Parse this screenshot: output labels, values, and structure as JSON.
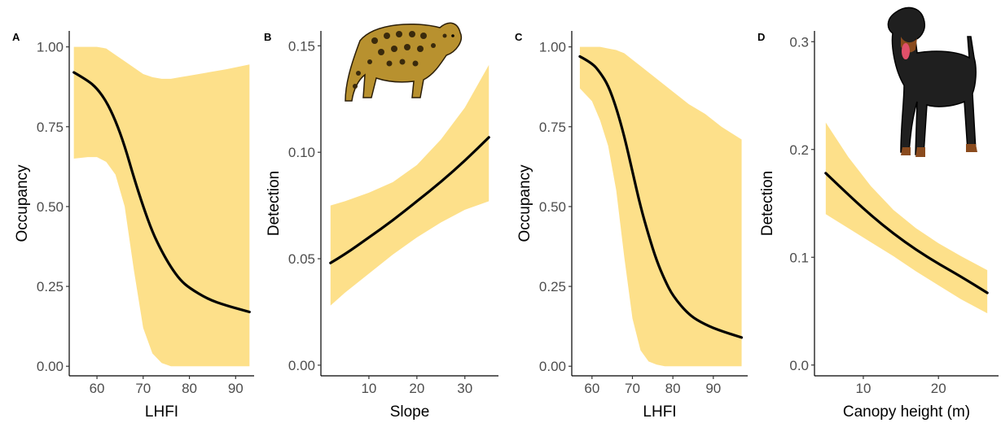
{
  "colors": {
    "ribbon": "#fde08a",
    "line": "#000000",
    "tick_text": "#4d4d4d"
  },
  "illustrations": [
    "ocelot-illustration",
    "rottweiler-illustration"
  ],
  "chart_data": [
    {
      "panel": "A",
      "type": "line",
      "xlabel": "LHFI",
      "ylabel": "Occupancy",
      "xlim": [
        54,
        94
      ],
      "ylim": [
        -0.03,
        1.05
      ],
      "xticks": [
        60,
        70,
        80,
        90
      ],
      "xtick_labels": [
        "60",
        "70",
        "80",
        "90"
      ],
      "yticks": [
        0,
        0.25,
        0.5,
        0.75,
        1.0
      ],
      "ytick_labels": [
        "0.00",
        "0.25",
        "0.50",
        "0.75",
        "1.00"
      ],
      "series": [
        {
          "x": [
            55,
            58,
            60,
            62,
            64,
            66,
            68,
            70,
            72,
            74,
            76,
            78,
            80,
            84,
            88,
            93
          ],
          "y": [
            0.92,
            0.895,
            0.87,
            0.83,
            0.77,
            0.69,
            0.59,
            0.5,
            0.42,
            0.36,
            0.31,
            0.27,
            0.245,
            0.21,
            0.19,
            0.17
          ],
          "lower": [
            0.65,
            0.655,
            0.655,
            0.64,
            0.6,
            0.5,
            0.3,
            0.12,
            0.04,
            0.01,
            0.0,
            0.0,
            0.0,
            0.0,
            0.0,
            0.0
          ],
          "upper": [
            1.0,
            1.0,
            1.0,
            0.995,
            0.975,
            0.955,
            0.935,
            0.915,
            0.905,
            0.9,
            0.9,
            0.905,
            0.91,
            0.92,
            0.93,
            0.945
          ]
        }
      ]
    },
    {
      "panel": "B",
      "type": "line",
      "xlabel": "Slope",
      "ylabel": "Detection",
      "xlim": [
        0,
        37
      ],
      "ylim": [
        -0.005,
        0.157
      ],
      "xticks": [
        10,
        20,
        30
      ],
      "xtick_labels": [
        "10",
        "20",
        "30"
      ],
      "yticks": [
        0,
        0.05,
        0.1,
        0.15
      ],
      "ytick_labels": [
        "0.00",
        "0.05",
        "0.10",
        "0.15"
      ],
      "series": [
        {
          "x": [
            2,
            5,
            10,
            15,
            20,
            25,
            30,
            35
          ],
          "y": [
            0.048,
            0.052,
            0.06,
            0.068,
            0.077,
            0.086,
            0.096,
            0.107
          ],
          "lower": [
            0.028,
            0.034,
            0.043,
            0.052,
            0.06,
            0.067,
            0.073,
            0.077
          ],
          "upper": [
            0.075,
            0.077,
            0.081,
            0.086,
            0.094,
            0.106,
            0.121,
            0.141
          ]
        }
      ]
    },
    {
      "panel": "C",
      "type": "line",
      "xlabel": "LHFI",
      "ylabel": "Occupancy",
      "xlim": [
        55,
        98.5
      ],
      "ylim": [
        -0.03,
        1.05
      ],
      "xticks": [
        60,
        70,
        80,
        90
      ],
      "xtick_labels": [
        "60",
        "70",
        "80",
        "90"
      ],
      "yticks": [
        0,
        0.25,
        0.5,
        0.75,
        1.0
      ],
      "ytick_labels": [
        "0.00",
        "0.25",
        "0.50",
        "0.75",
        "1.00"
      ],
      "series": [
        {
          "x": [
            57,
            60,
            62,
            64,
            66,
            68,
            70,
            72,
            74,
            76,
            78,
            80,
            84,
            88,
            92,
            97
          ],
          "y": [
            0.97,
            0.95,
            0.92,
            0.88,
            0.81,
            0.72,
            0.61,
            0.5,
            0.41,
            0.33,
            0.27,
            0.22,
            0.16,
            0.13,
            0.11,
            0.09
          ],
          "lower": [
            0.87,
            0.83,
            0.77,
            0.69,
            0.55,
            0.34,
            0.15,
            0.05,
            0.015,
            0.005,
            0.0,
            0.0,
            0.0,
            0.0,
            0.0,
            0.0
          ],
          "upper": [
            1.0,
            1.0,
            1.0,
            0.995,
            0.99,
            0.98,
            0.96,
            0.94,
            0.92,
            0.9,
            0.88,
            0.86,
            0.82,
            0.79,
            0.75,
            0.71
          ]
        }
      ]
    },
    {
      "panel": "D",
      "type": "line",
      "xlabel": "Canopy height (m)",
      "ylabel": "Detection",
      "xlim": [
        3.5,
        28
      ],
      "ylim": [
        -0.01,
        0.31
      ],
      "xticks": [
        10,
        20
      ],
      "xtick_labels": [
        "10",
        "20"
      ],
      "yticks": [
        0,
        0.1,
        0.2,
        0.3
      ],
      "ytick_labels": [
        "0.0",
        "0.1",
        "0.2",
        "0.3"
      ],
      "series": [
        {
          "x": [
            5,
            8,
            11,
            14,
            17,
            20,
            23,
            26.5
          ],
          "y": [
            0.178,
            0.158,
            0.139,
            0.122,
            0.107,
            0.094,
            0.082,
            0.067
          ],
          "lower": [
            0.14,
            0.127,
            0.114,
            0.101,
            0.087,
            0.074,
            0.061,
            0.048
          ],
          "upper": [
            0.225,
            0.193,
            0.166,
            0.144,
            0.127,
            0.113,
            0.101,
            0.088
          ]
        }
      ]
    }
  ]
}
